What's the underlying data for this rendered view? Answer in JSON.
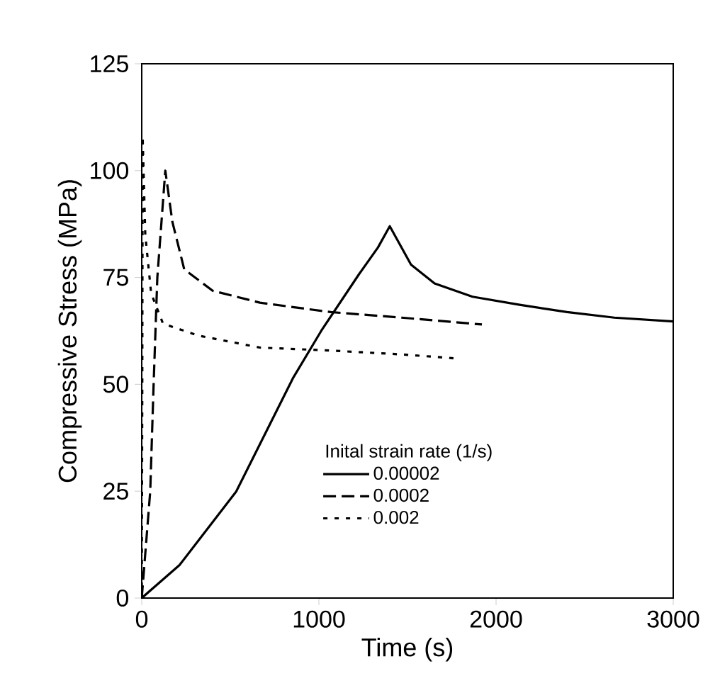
{
  "chart_data": {
    "type": "line",
    "xlabel": "Time (s)",
    "ylabel": "Compressive Stress (MPa)",
    "legend_title": "Inital strain rate (1/s)",
    "xlim": [
      0,
      3000
    ],
    "ylim": [
      0,
      125
    ],
    "xticks": [
      0,
      1000,
      2000,
      3000
    ],
    "yticks": [
      0,
      25,
      50,
      75,
      100,
      125
    ],
    "legend": "bottom right",
    "grid": false,
    "series": [
      {
        "name": "0.00002",
        "color": "#000000",
        "line_style": "solid",
        "x": [
          0,
          213,
          533,
          853,
          1013,
          1227,
          1333,
          1400,
          1520,
          1653,
          1867,
          2133,
          2400,
          2667,
          3000
        ],
        "values": [
          0,
          7.7,
          24.9,
          51.4,
          62.5,
          75.8,
          82,
          87,
          78,
          73.6,
          70.5,
          68.6,
          66.9,
          65.6,
          64.7
        ]
      },
      {
        "name": "0.0002",
        "color": "#000000",
        "line_style": "dashed",
        "x": [
          0,
          48,
          67,
          88,
          133,
          173,
          240,
          400,
          667,
          1067,
          1467,
          1920
        ],
        "values": [
          0,
          25,
          50,
          75,
          100,
          88,
          76.9,
          71.9,
          69.1,
          66.9,
          65.6,
          64
        ]
      },
      {
        "name": "0.002",
        "color": "#000000",
        "line_style": "dotted",
        "x": [
          0,
          3,
          5,
          20,
          53,
          120,
          320,
          667,
          1067,
          1467,
          1760
        ],
        "values": [
          0,
          50,
          108,
          85,
          71.3,
          64.2,
          61.4,
          58.6,
          57.9,
          57,
          56.1
        ]
      }
    ]
  }
}
